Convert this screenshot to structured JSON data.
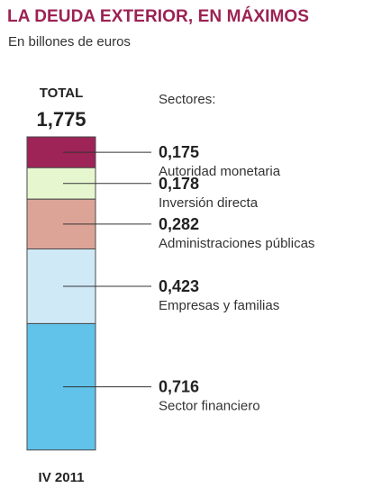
{
  "header": {
    "title": "LA DEUDA EXTERIOR, EN MÁXIMOS",
    "subtitle": "En billones de euros"
  },
  "colors": {
    "title": "#9b2252",
    "leader": "#333333",
    "bar_outline": "#4a4a4a"
  },
  "chart_data": {
    "type": "bar",
    "stacked": true,
    "title": "LA DEUDA EXTERIOR, EN MÁXIMOS",
    "subtitle": "En billones de euros",
    "categories": [
      "IV 2011"
    ],
    "total_label": "TOTAL",
    "total_value": "1,775",
    "legend_title": "Sectores:",
    "ylim": [
      0,
      1.775
    ],
    "series": [
      {
        "name": "Autoridad monetaria",
        "value": 0.175,
        "label": "0,175",
        "color": "#9e2356"
      },
      {
        "name": "Inversión directa",
        "value": 0.178,
        "label": "0,178",
        "color": "#e6f7cf"
      },
      {
        "name": "Administraciones públicas",
        "value": 0.282,
        "label": "0,282",
        "color": "#dca497"
      },
      {
        "name": "Empresas y familias",
        "value": 0.423,
        "label": "0,423",
        "color": "#cfe9f7"
      },
      {
        "name": "Sector financiero",
        "value": 0.716,
        "label": "0,716",
        "color": "#61c2ea"
      }
    ]
  }
}
